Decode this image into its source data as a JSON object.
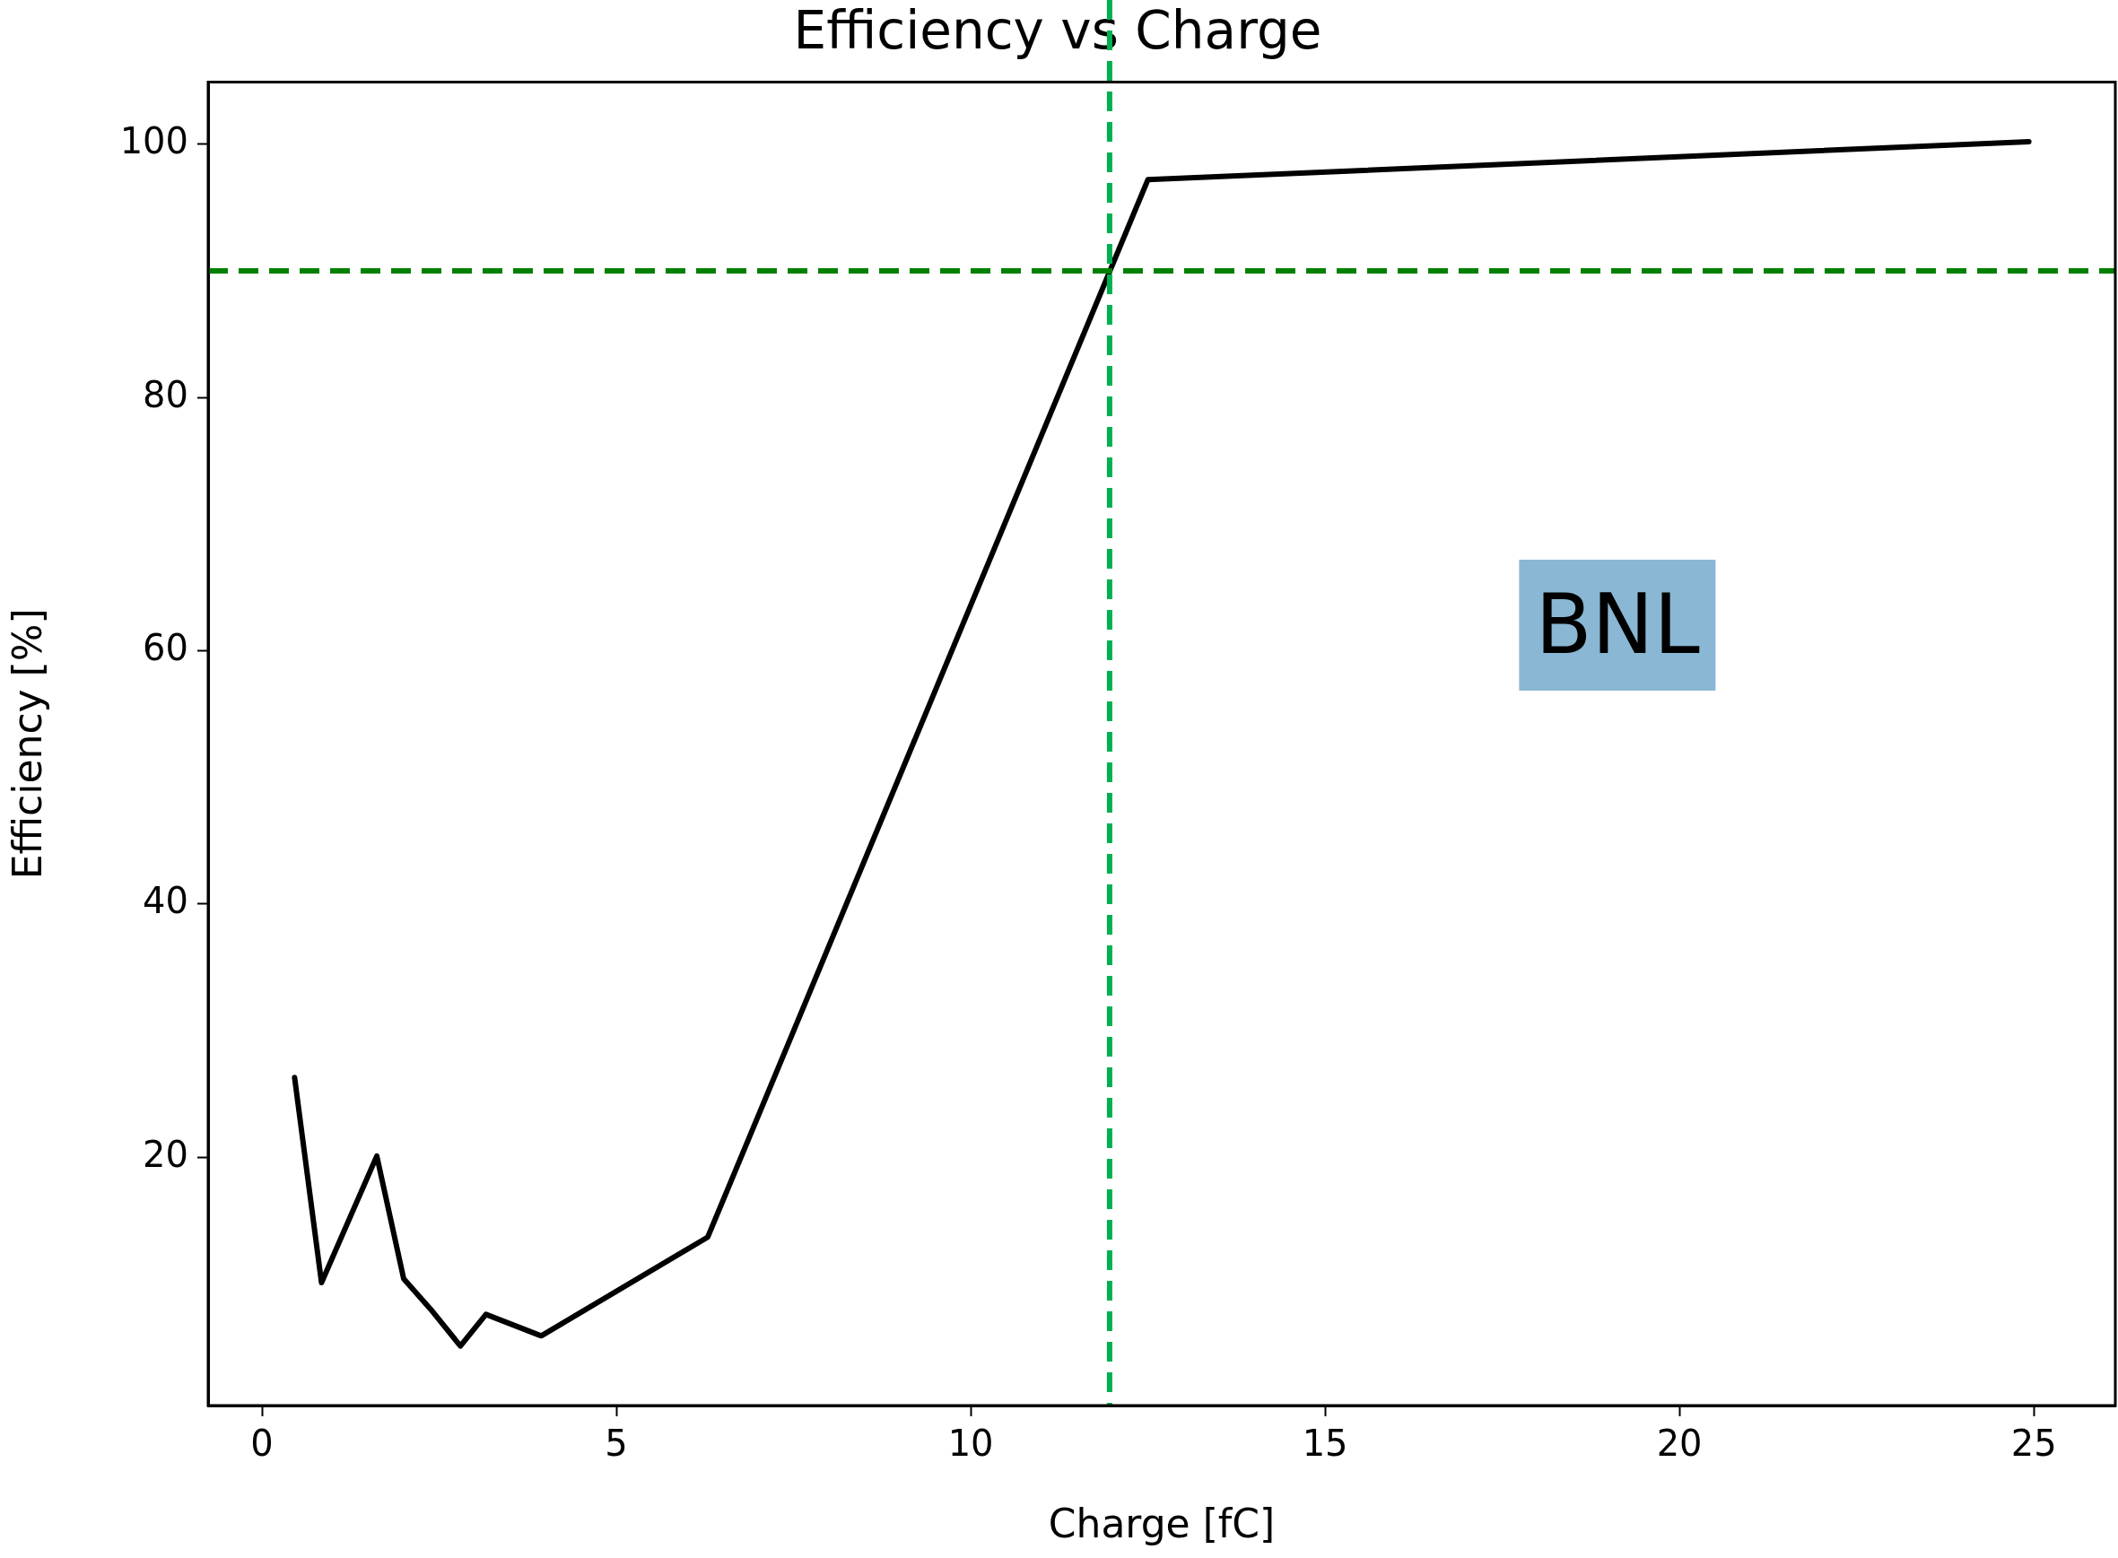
{
  "chart_data": {
    "type": "line",
    "title": "Efficiency vs Charge",
    "xlabel": "Charge [fC]",
    "ylabel": "Efficiency [%]",
    "x": [
      0.46,
      0.84,
      1.62,
      2.0,
      2.38,
      2.8,
      3.16,
      3.94,
      6.29,
      12.5,
      24.93
    ],
    "series": [
      {
        "color": "#000000",
        "values": [
          26.3,
          10.1,
          20.1,
          10.4,
          8.0,
          5.1,
          7.6,
          5.9,
          13.7,
          97.2,
          100.2
        ]
      }
    ],
    "xlim": [
      -0.76,
      26.15
    ],
    "xticks": [
      0,
      5,
      10,
      15,
      20,
      25
    ],
    "ylim": [
      0.4,
      104.9
    ],
    "yticks": [
      20,
      40,
      60,
      80,
      100
    ],
    "grid": false,
    "legend": false,
    "marker": "none",
    "line_style": "solid",
    "ref_lines": [
      {
        "axis": "y",
        "value": 90,
        "color": "#008000",
        "line_style": "dashed"
      },
      {
        "axis": "x",
        "value": 11.96,
        "color": "#00b050",
        "line_style": "dashed"
      }
    ],
    "annotations": [
      "BNL"
    ]
  }
}
